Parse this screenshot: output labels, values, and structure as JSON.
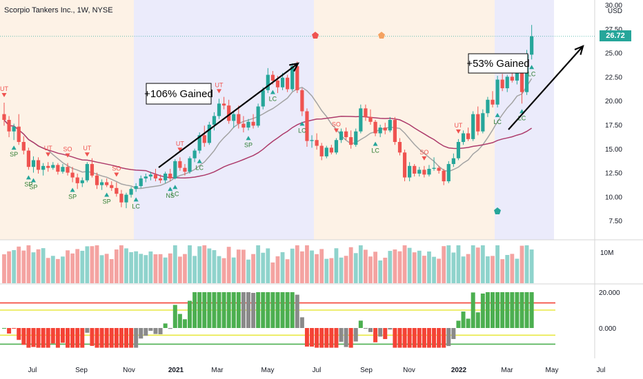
{
  "title": "Scorpio Tankers Inc., 1W, NYSE",
  "currency": "USD",
  "last_price": "26.72",
  "colors": {
    "up": "#26a69a",
    "down": "#ef5350",
    "vol_up": "#8fd3cc",
    "vol_down": "#f4a3a1",
    "ma_fast": "#a3a3a3",
    "ma_slow": "#ad3b6b",
    "bg_warm": "#fdf2e6",
    "bg_cool": "#ebebfb",
    "osc_green": "#4caf50",
    "osc_red": "#f44336",
    "osc_gray": "#8a8a8a",
    "line_red": "#f44336",
    "line_yellow": "#e8e840",
    "line_green": "#4caf50"
  },
  "annotations": {
    "gain1": "+106% Gained",
    "gain2": "+53% Gained"
  },
  "chart_data": {
    "type": "candlestick",
    "price_axis": {
      "range": [
        5.5,
        30.5
      ],
      "ticks": [
        "7.50",
        "10.00",
        "12.50",
        "15.00",
        "17.50",
        "20.00",
        "22.50",
        "25.00",
        "27.50",
        "30.00"
      ]
    },
    "volume_axis": {
      "label": "10M"
    },
    "oscillator_axis": {
      "ticks": [
        "20.000",
        "0.000"
      ],
      "levels": {
        "red": 14,
        "yellow": 10,
        "yellow_low": -4,
        "green": -9
      }
    },
    "x_tick_labels": [
      "Jul",
      "Sep",
      "Nov",
      "2021",
      "Mar",
      "May",
      "Jul",
      "Sep",
      "Nov",
      "2022",
      "Mar",
      "May",
      "Jul"
    ],
    "signal_labels": [
      "UT",
      "SP",
      "SO",
      "LC",
      "NS"
    ],
    "candles": [
      {
        "o": 18.6,
        "h": 19.8,
        "l": 17.4,
        "c": 18.0
      },
      {
        "o": 18.0,
        "h": 18.4,
        "l": 16.2,
        "c": 16.8
      },
      {
        "o": 16.8,
        "h": 17.6,
        "l": 15.9,
        "c": 17.3
      },
      {
        "o": 17.3,
        "h": 18.6,
        "l": 15.4,
        "c": 15.7
      },
      {
        "o": 15.7,
        "h": 16.3,
        "l": 14.4,
        "c": 14.8
      },
      {
        "o": 14.8,
        "h": 15.1,
        "l": 12.8,
        "c": 13.1
      },
      {
        "o": 13.1,
        "h": 14.2,
        "l": 12.5,
        "c": 13.8
      },
      {
        "o": 13.8,
        "h": 14.1,
        "l": 12.4,
        "c": 12.8
      },
      {
        "o": 12.8,
        "h": 13.5,
        "l": 12.2,
        "c": 13.2
      },
      {
        "o": 13.2,
        "h": 13.6,
        "l": 12.6,
        "c": 13.0
      },
      {
        "o": 13.0,
        "h": 13.6,
        "l": 12.8,
        "c": 13.3
      },
      {
        "o": 13.3,
        "h": 13.5,
        "l": 12.3,
        "c": 12.6
      },
      {
        "o": 12.6,
        "h": 13.4,
        "l": 12.4,
        "c": 13.1
      },
      {
        "o": 13.1,
        "h": 13.5,
        "l": 12.2,
        "c": 12.5
      },
      {
        "o": 12.5,
        "h": 13.1,
        "l": 11.5,
        "c": 12.0
      },
      {
        "o": 12.0,
        "h": 12.4,
        "l": 10.8,
        "c": 11.4
      },
      {
        "o": 11.4,
        "h": 12.0,
        "l": 11.0,
        "c": 11.7
      },
      {
        "o": 11.7,
        "h": 13.6,
        "l": 11.5,
        "c": 13.4
      },
      {
        "o": 13.4,
        "h": 14.0,
        "l": 12.0,
        "c": 12.2
      },
      {
        "o": 12.2,
        "h": 12.5,
        "l": 10.8,
        "c": 11.2
      },
      {
        "o": 11.2,
        "h": 11.8,
        "l": 10.7,
        "c": 11.5
      },
      {
        "o": 11.5,
        "h": 11.9,
        "l": 11.0,
        "c": 11.2
      },
      {
        "o": 11.2,
        "h": 11.6,
        "l": 10.6,
        "c": 10.9
      },
      {
        "o": 10.9,
        "h": 11.5,
        "l": 10.0,
        "c": 10.3
      },
      {
        "o": 10.3,
        "h": 10.7,
        "l": 8.9,
        "c": 9.4
      },
      {
        "o": 9.4,
        "h": 10.4,
        "l": 8.8,
        "c": 10.2
      },
      {
        "o": 10.2,
        "h": 11.0,
        "l": 9.9,
        "c": 10.8
      },
      {
        "o": 10.8,
        "h": 11.4,
        "l": 10.5,
        "c": 11.1
      },
      {
        "o": 11.1,
        "h": 12.2,
        "l": 10.9,
        "c": 11.9
      },
      {
        "o": 11.9,
        "h": 12.4,
        "l": 11.5,
        "c": 12.1
      },
      {
        "o": 12.1,
        "h": 12.6,
        "l": 11.7,
        "c": 12.3
      },
      {
        "o": 12.3,
        "h": 12.9,
        "l": 11.6,
        "c": 11.9
      },
      {
        "o": 11.9,
        "h": 12.3,
        "l": 11.4,
        "c": 11.7
      },
      {
        "o": 11.7,
        "h": 12.6,
        "l": 11.4,
        "c": 12.4
      },
      {
        "o": 12.4,
        "h": 12.9,
        "l": 11.6,
        "c": 11.9
      },
      {
        "o": 11.9,
        "h": 13.9,
        "l": 11.8,
        "c": 13.7
      },
      {
        "o": 13.7,
        "h": 14.1,
        "l": 12.7,
        "c": 13.0
      },
      {
        "o": 13.0,
        "h": 13.4,
        "l": 12.2,
        "c": 12.6
      },
      {
        "o": 12.6,
        "h": 14.2,
        "l": 12.4,
        "c": 14.0
      },
      {
        "o": 14.0,
        "h": 15.0,
        "l": 13.6,
        "c": 14.8
      },
      {
        "o": 14.8,
        "h": 16.7,
        "l": 14.5,
        "c": 16.4
      },
      {
        "o": 16.4,
        "h": 17.4,
        "l": 15.2,
        "c": 15.6
      },
      {
        "o": 15.6,
        "h": 17.8,
        "l": 15.4,
        "c": 17.5
      },
      {
        "o": 17.5,
        "h": 18.8,
        "l": 16.9,
        "c": 18.4
      },
      {
        "o": 18.4,
        "h": 20.2,
        "l": 18.1,
        "c": 19.7
      },
      {
        "o": 19.7,
        "h": 20.4,
        "l": 19.1,
        "c": 19.5
      },
      {
        "o": 19.5,
        "h": 20.1,
        "l": 17.6,
        "c": 17.9
      },
      {
        "o": 17.9,
        "h": 18.9,
        "l": 17.2,
        "c": 18.6
      },
      {
        "o": 18.6,
        "h": 19.5,
        "l": 17.1,
        "c": 17.6
      },
      {
        "o": 17.6,
        "h": 18.4,
        "l": 16.7,
        "c": 17.2
      },
      {
        "o": 17.2,
        "h": 18.1,
        "l": 16.9,
        "c": 17.8
      },
      {
        "o": 17.8,
        "h": 18.6,
        "l": 17.1,
        "c": 17.4
      },
      {
        "o": 17.4,
        "h": 19.7,
        "l": 17.2,
        "c": 19.4
      },
      {
        "o": 19.4,
        "h": 21.4,
        "l": 19.1,
        "c": 21.1
      },
      {
        "o": 21.1,
        "h": 23.4,
        "l": 20.8,
        "c": 22.7
      },
      {
        "o": 22.7,
        "h": 23.1,
        "l": 21.7,
        "c": 22.1
      },
      {
        "o": 22.1,
        "h": 22.6,
        "l": 20.8,
        "c": 21.4
      },
      {
        "o": 21.4,
        "h": 22.9,
        "l": 21.1,
        "c": 22.4
      },
      {
        "o": 22.4,
        "h": 22.7,
        "l": 20.9,
        "c": 21.2
      },
      {
        "o": 21.2,
        "h": 23.9,
        "l": 21.0,
        "c": 23.6
      },
      {
        "o": 23.6,
        "h": 24.1,
        "l": 20.8,
        "c": 21.1
      },
      {
        "o": 21.1,
        "h": 21.3,
        "l": 18.4,
        "c": 18.9
      },
      {
        "o": 18.9,
        "h": 19.2,
        "l": 15.2,
        "c": 15.8
      },
      {
        "o": 15.8,
        "h": 16.4,
        "l": 15.1,
        "c": 15.9
      },
      {
        "o": 15.9,
        "h": 16.6,
        "l": 14.9,
        "c": 15.3
      },
      {
        "o": 15.3,
        "h": 15.6,
        "l": 13.8,
        "c": 14.2
      },
      {
        "o": 14.2,
        "h": 15.3,
        "l": 14.0,
        "c": 15.1
      },
      {
        "o": 15.1,
        "h": 15.4,
        "l": 14.4,
        "c": 14.6
      },
      {
        "o": 14.6,
        "h": 16.1,
        "l": 14.4,
        "c": 15.9
      },
      {
        "o": 15.9,
        "h": 17.1,
        "l": 15.6,
        "c": 16.8
      },
      {
        "o": 16.8,
        "h": 17.2,
        "l": 15.9,
        "c": 16.2
      },
      {
        "o": 16.2,
        "h": 16.9,
        "l": 15.0,
        "c": 15.4
      },
      {
        "o": 15.4,
        "h": 17.1,
        "l": 15.2,
        "c": 16.8
      },
      {
        "o": 16.8,
        "h": 19.6,
        "l": 16.6,
        "c": 19.2
      },
      {
        "o": 19.2,
        "h": 19.6,
        "l": 17.9,
        "c": 18.3
      },
      {
        "o": 18.3,
        "h": 19.1,
        "l": 17.5,
        "c": 17.8
      },
      {
        "o": 17.8,
        "h": 18.0,
        "l": 16.3,
        "c": 16.6
      },
      {
        "o": 16.6,
        "h": 17.5,
        "l": 16.2,
        "c": 17.2
      },
      {
        "o": 17.2,
        "h": 17.7,
        "l": 16.5,
        "c": 16.9
      },
      {
        "o": 16.9,
        "h": 18.3,
        "l": 16.7,
        "c": 18.0
      },
      {
        "o": 18.0,
        "h": 18.3,
        "l": 15.4,
        "c": 15.7
      },
      {
        "o": 15.7,
        "h": 16.1,
        "l": 14.3,
        "c": 14.6
      },
      {
        "o": 14.6,
        "h": 14.9,
        "l": 11.6,
        "c": 12.0
      },
      {
        "o": 12.0,
        "h": 13.6,
        "l": 11.6,
        "c": 13.2
      },
      {
        "o": 13.2,
        "h": 13.4,
        "l": 12.1,
        "c": 12.4
      },
      {
        "o": 12.4,
        "h": 13.1,
        "l": 12.1,
        "c": 12.8
      },
      {
        "o": 12.8,
        "h": 13.2,
        "l": 12.0,
        "c": 12.3
      },
      {
        "o": 12.3,
        "h": 13.3,
        "l": 12.1,
        "c": 12.9
      },
      {
        "o": 12.9,
        "h": 14.1,
        "l": 12.7,
        "c": 13.0
      },
      {
        "o": 13.0,
        "h": 13.2,
        "l": 12.4,
        "c": 12.7
      },
      {
        "o": 12.7,
        "h": 12.9,
        "l": 11.2,
        "c": 11.6
      },
      {
        "o": 11.6,
        "h": 13.7,
        "l": 11.4,
        "c": 13.4
      },
      {
        "o": 13.4,
        "h": 14.5,
        "l": 13.1,
        "c": 14.0
      },
      {
        "o": 14.0,
        "h": 16.0,
        "l": 13.8,
        "c": 15.7
      },
      {
        "o": 15.7,
        "h": 16.9,
        "l": 15.4,
        "c": 16.6
      },
      {
        "o": 16.6,
        "h": 17.2,
        "l": 15.8,
        "c": 16.0
      },
      {
        "o": 16.0,
        "h": 18.9,
        "l": 15.8,
        "c": 18.6
      },
      {
        "o": 18.6,
        "h": 19.4,
        "l": 16.4,
        "c": 16.8
      },
      {
        "o": 16.8,
        "h": 19.1,
        "l": 16.6,
        "c": 18.7
      },
      {
        "o": 18.7,
        "h": 20.4,
        "l": 18.3,
        "c": 20.1
      },
      {
        "o": 20.1,
        "h": 21.0,
        "l": 19.3,
        "c": 19.6
      },
      {
        "o": 19.6,
        "h": 22.6,
        "l": 19.3,
        "c": 22.2
      },
      {
        "o": 22.2,
        "h": 22.8,
        "l": 21.0,
        "c": 21.3
      },
      {
        "o": 21.3,
        "h": 22.7,
        "l": 20.9,
        "c": 22.5
      },
      {
        "o": 22.5,
        "h": 23.3,
        "l": 21.9,
        "c": 22.1
      },
      {
        "o": 22.1,
        "h": 23.4,
        "l": 21.7,
        "c": 22.9
      },
      {
        "o": 22.9,
        "h": 23.2,
        "l": 19.7,
        "c": 20.9
      },
      {
        "o": 20.9,
        "h": 25.3,
        "l": 20.6,
        "c": 24.8
      },
      {
        "o": 24.8,
        "h": 27.9,
        "l": 24.3,
        "c": 26.72
      }
    ]
  }
}
